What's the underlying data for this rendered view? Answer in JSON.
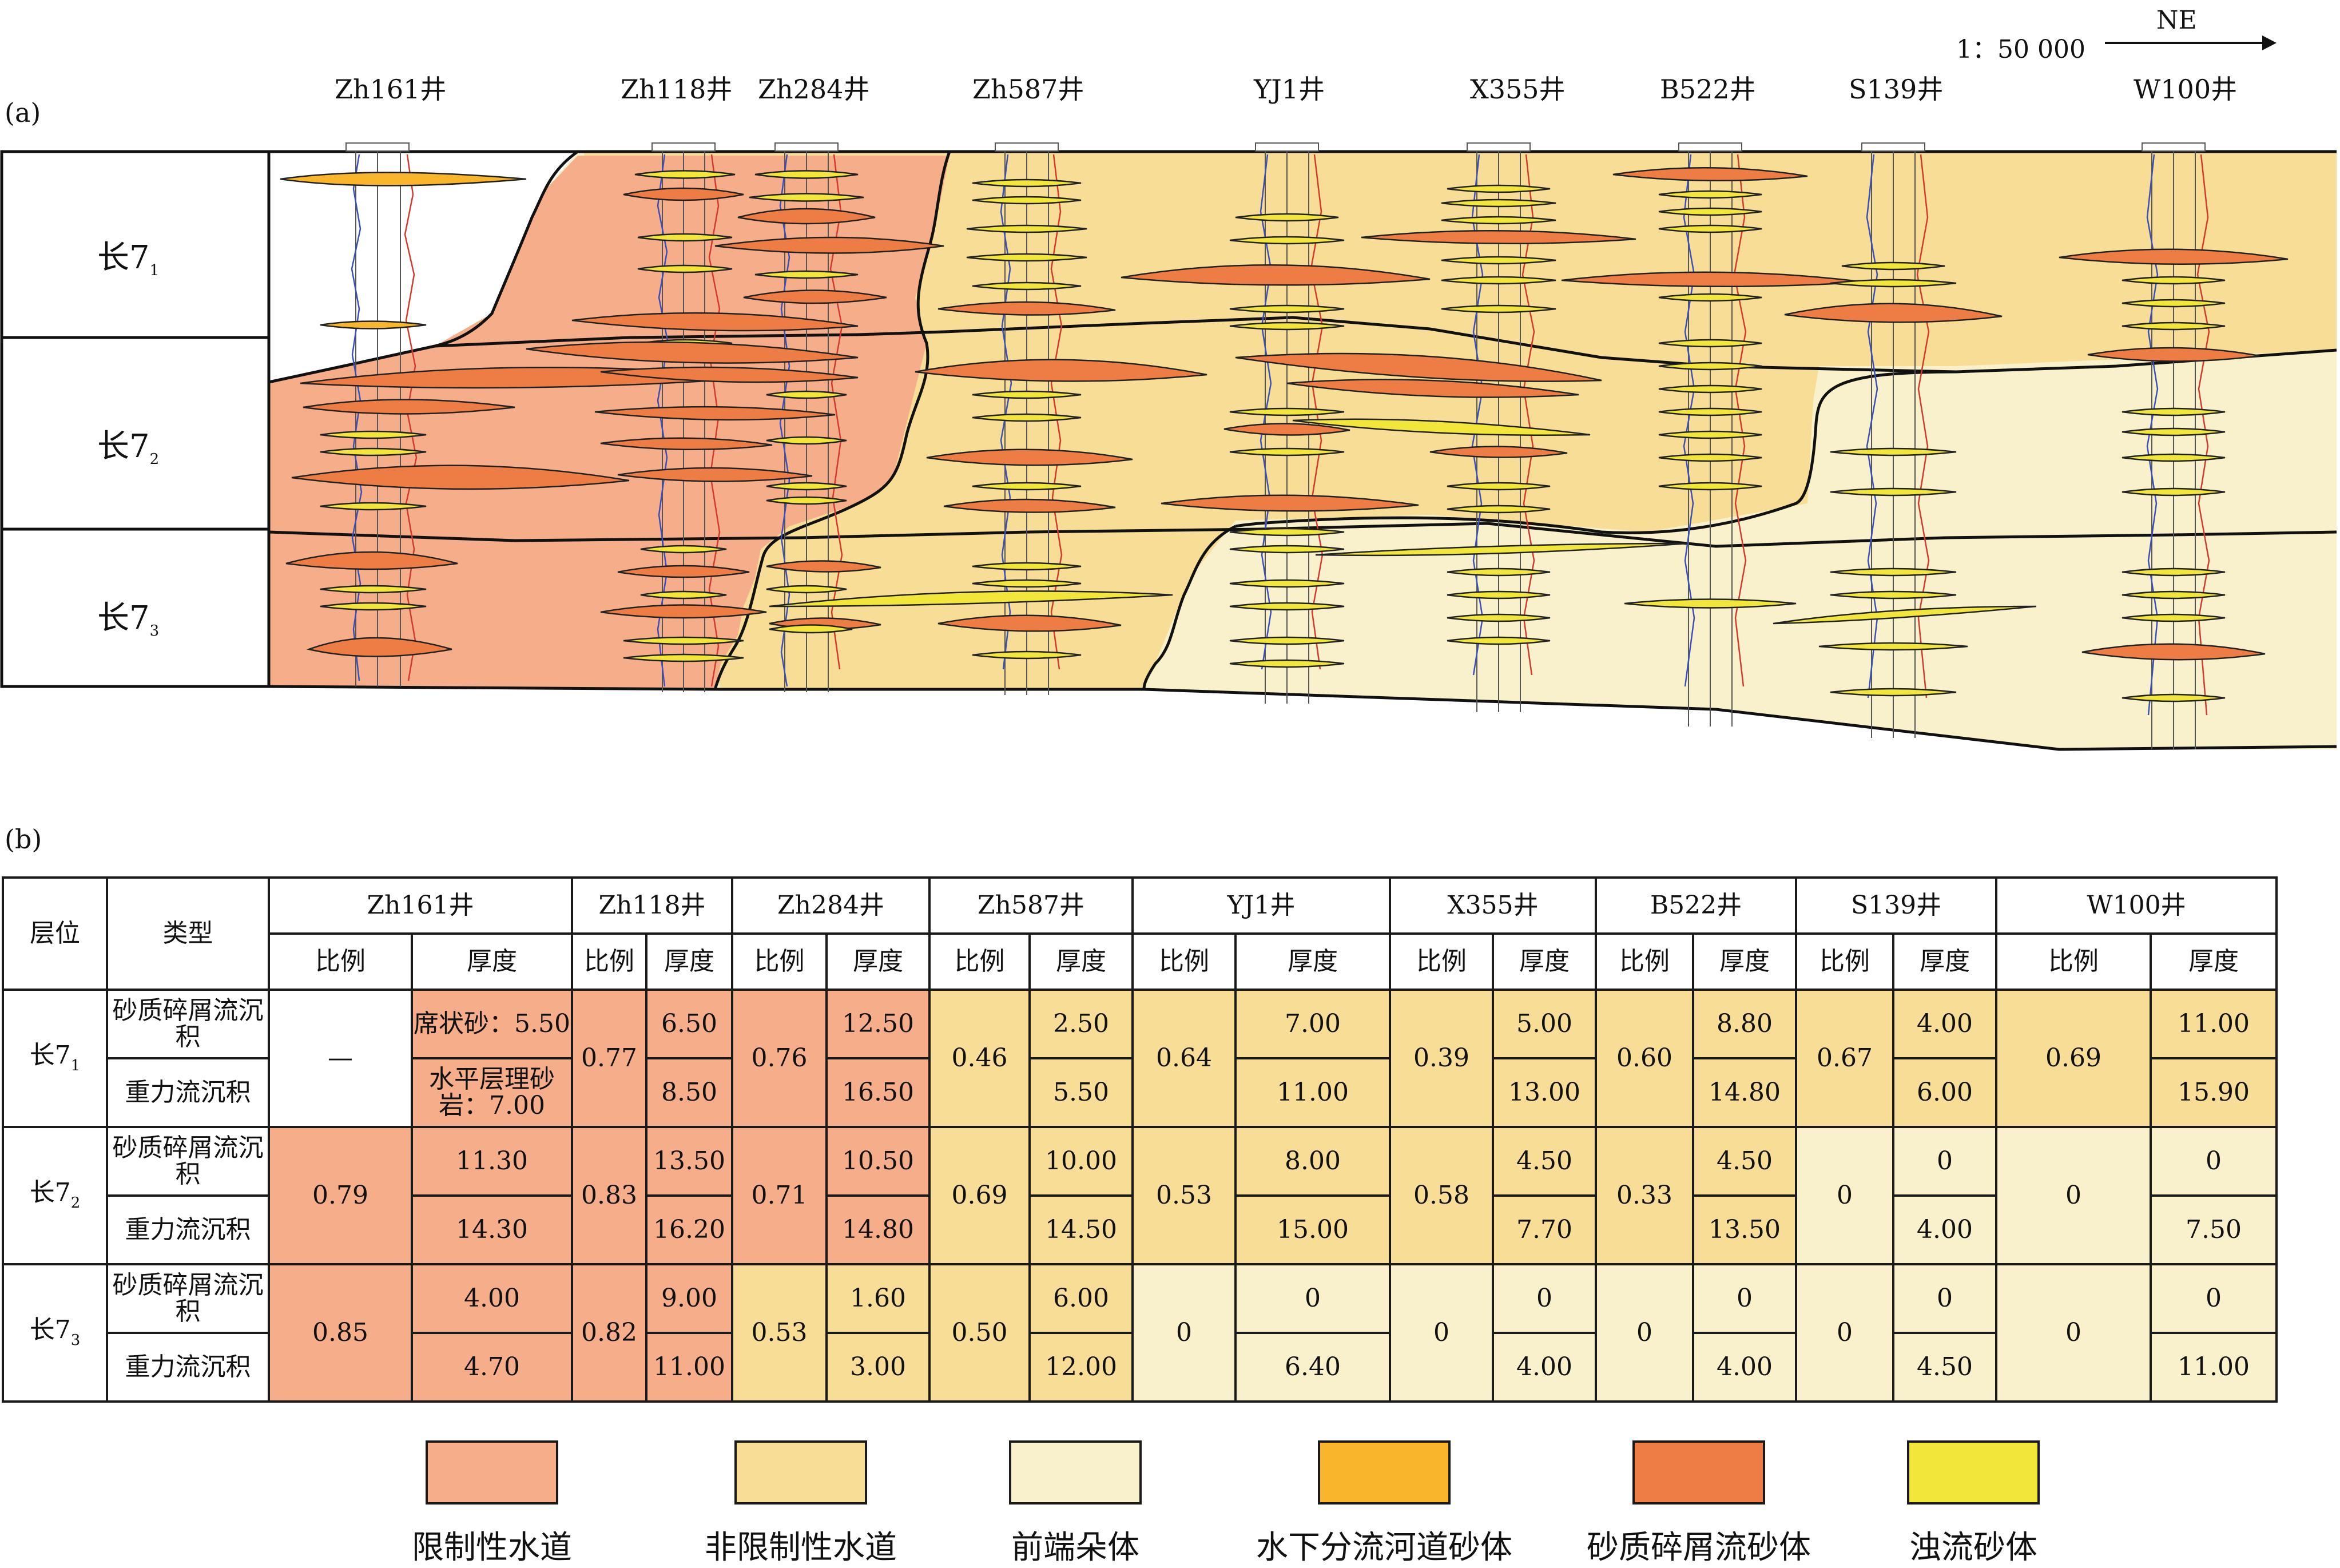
{
  "panel_a": {
    "label": "(a)",
    "scale": "1：50 000",
    "direction": "NE",
    "layers": [
      {
        "name": "长7",
        "sub": "1"
      },
      {
        "name": "长7",
        "sub": "2"
      },
      {
        "name": "长7",
        "sub": "3"
      }
    ],
    "wells": [
      "Zh161井",
      "Zh118井",
      "Zh284井",
      "Zh587井",
      "YJ1井",
      "X355井",
      "B522井",
      "S139井",
      "W100井"
    ]
  },
  "panel_b": {
    "label": "(b)",
    "header": {
      "layer": "层位",
      "type": "类型",
      "wells": [
        "Zh161井",
        "Zh118井",
        "Zh284井",
        "Zh587井",
        "YJ1井",
        "X355井",
        "B522井",
        "S139井",
        "W100井"
      ],
      "ratio": "比例",
      "thickness": "厚度"
    },
    "types": [
      "砂质碎屑流沉积",
      "重力流沉积"
    ],
    "layers": [
      {
        "name": "长7",
        "sub": "1"
      },
      {
        "name": "长7",
        "sub": "2"
      },
      {
        "name": "长7",
        "sub": "3"
      }
    ],
    "rows": [
      {
        "ratios": [
          "—",
          "0.77",
          "0.76",
          "0.46",
          "0.64",
          "0.39",
          "0.60",
          "0.67",
          "0.69"
        ],
        "t1": [
          "席状砂：5.50",
          "6.50",
          "12.50",
          "2.50",
          "7.00",
          "5.00",
          "8.80",
          "4.00",
          "11.00"
        ],
        "t2": [
          "水平层理砂岩：7.00",
          "8.50",
          "16.50",
          "5.50",
          "11.00",
          "13.00",
          "14.80",
          "6.00",
          "15.90"
        ]
      },
      {
        "ratios": [
          "0.79",
          "0.83",
          "0.71",
          "0.69",
          "0.53",
          "0.58",
          "0.33",
          "0",
          "0"
        ],
        "t1": [
          "11.30",
          "13.50",
          "10.50",
          "10.00",
          "8.00",
          "4.50",
          "4.50",
          "0",
          "0"
        ],
        "t2": [
          "14.30",
          "16.20",
          "14.80",
          "14.50",
          "15.00",
          "7.70",
          "13.50",
          "4.00",
          "7.50"
        ]
      },
      {
        "ratios": [
          "0.85",
          "0.82",
          "0.53",
          "0.50",
          "0",
          "0",
          "0",
          "0",
          "0"
        ],
        "t1": [
          "4.00",
          "9.00",
          "1.60",
          "6.00",
          "0",
          "0",
          "0",
          "0",
          "0"
        ],
        "t2": [
          "4.70",
          "11.00",
          "3.00",
          "12.00",
          "6.40",
          "4.00",
          "4.00",
          "4.50",
          "11.00"
        ]
      }
    ]
  },
  "legend": [
    {
      "label": "限制性水道",
      "color": "#f6ad8a"
    },
    {
      "label": "非限制性水道",
      "color": "#f7dd95"
    },
    {
      "label": "前端朵体",
      "color": "#f8f1cc"
    },
    {
      "label": "水下分流河道砂体",
      "color": "#f9b52c"
    },
    {
      "label": "砂质碎屑流砂体",
      "color": "#ee7d45"
    },
    {
      "label": "浊流砂体",
      "color": "#f2e63a"
    }
  ]
}
